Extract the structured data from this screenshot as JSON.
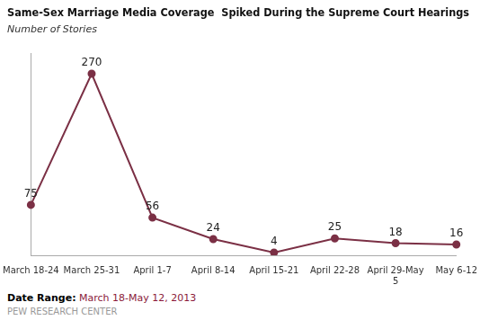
{
  "chart_data": {
    "type": "line",
    "title": "Same-Sex Marriage Media Coverage  Spiked During the Supreme Court Hearings",
    "subtitle": "Number of Stories",
    "categories": [
      "March 18-24",
      "March 25-31",
      "April 1-7",
      "April 8-14",
      "April 15-21",
      "April 22-28",
      "April 29-May\n5",
      "May 6-12"
    ],
    "values": [
      75,
      270,
      56,
      24,
      4,
      25,
      18,
      16
    ],
    "color": "#7B3045",
    "marker": "circle",
    "ylim": [
      0,
      300
    ],
    "grid": false,
    "tick_labels": "x",
    "data_labels": true,
    "annotations": [
      {
        "text": "Date Range:",
        "color": "#000000"
      },
      {
        "text": " March 18-May 12, 2013",
        "color": "#8B1A3A"
      },
      {
        "text": "PEW RESEARCH CENTER",
        "color": "#999999"
      }
    ]
  }
}
